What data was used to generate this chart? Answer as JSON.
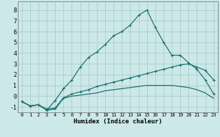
{
  "xlabel": "Humidex (Indice chaleur)",
  "bg_color": "#cce8e8",
  "grid_color": "#aacccc",
  "line_color": "#1a7070",
  "xlim": [
    -0.5,
    23.5
  ],
  "ylim": [
    -1.5,
    8.8
  ],
  "yticks": [
    -1,
    0,
    1,
    2,
    3,
    4,
    5,
    6,
    7,
    8
  ],
  "xticks": [
    0,
    1,
    2,
    3,
    4,
    5,
    6,
    7,
    8,
    9,
    10,
    11,
    12,
    13,
    14,
    15,
    16,
    17,
    18,
    19,
    20,
    21,
    22,
    23
  ],
  "line3_x": [
    0,
    1,
    2,
    3,
    4,
    5,
    6,
    7,
    8,
    9,
    10,
    11,
    12,
    13,
    14,
    15,
    16,
    17,
    18,
    19,
    20,
    21,
    22,
    23
  ],
  "line3_y": [
    -0.5,
    -0.9,
    -0.8,
    -1.3,
    -0.4,
    0.7,
    1.5,
    2.7,
    3.6,
    4.1,
    4.8,
    5.6,
    6.0,
    6.6,
    7.5,
    8.0,
    6.4,
    5.0,
    3.8,
    3.8,
    3.1,
    2.5,
    1.5,
    0.2
  ],
  "line1_x": [
    0,
    1,
    2,
    3,
    4,
    5,
    6,
    7,
    8,
    9,
    10,
    11,
    12,
    13,
    14,
    15,
    16,
    17,
    18,
    19,
    20,
    21,
    22,
    23
  ],
  "line1_y": [
    -0.5,
    -0.9,
    -0.8,
    -1.2,
    -1.1,
    -0.15,
    0.2,
    0.4,
    0.6,
    0.9,
    1.1,
    1.3,
    1.5,
    1.7,
    1.9,
    2.1,
    2.3,
    2.5,
    2.7,
    2.9,
    3.0,
    2.7,
    2.4,
    1.5
  ],
  "line2_x": [
    0,
    1,
    2,
    3,
    4,
    5,
    6,
    7,
    8,
    9,
    10,
    11,
    12,
    13,
    14,
    15,
    16,
    17,
    18,
    19,
    20,
    21,
    22,
    23
  ],
  "line2_y": [
    -0.5,
    -0.9,
    -0.8,
    -1.3,
    -1.2,
    -0.2,
    0.0,
    0.1,
    0.2,
    0.3,
    0.5,
    0.6,
    0.7,
    0.8,
    0.9,
    1.0,
    1.0,
    1.0,
    1.0,
    0.9,
    0.8,
    0.6,
    0.3,
    -0.2
  ]
}
